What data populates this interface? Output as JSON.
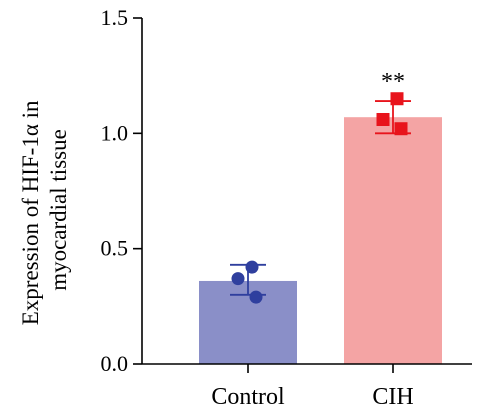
{
  "chart_data": {
    "type": "bar",
    "title": "",
    "xlabel": "",
    "ylabel_line1": "Expression of HIF-1α in",
    "ylabel_line2": "myocardial tissue",
    "ylim": [
      0,
      1.5
    ],
    "yticks": [
      0.0,
      0.5,
      1.0,
      1.5
    ],
    "ytick_labels": [
      "0.0",
      "0.5",
      "1.0",
      "1.5"
    ],
    "categories": [
      "Control",
      "CIH"
    ],
    "values": [
      0.36,
      1.07
    ],
    "error_low": [
      0.3,
      1.0
    ],
    "error_high": [
      0.43,
      1.14
    ],
    "points": [
      [
        0.42,
        0.37,
        0.29
      ],
      [
        1.15,
        1.06,
        1.02
      ]
    ],
    "significance": [
      "",
      "**"
    ],
    "bar_colors": [
      "#8a8fc8",
      "#f4a4a4"
    ],
    "point_colors": [
      "#2f3f9e",
      "#e8141c"
    ],
    "point_shapes": [
      "circle",
      "square"
    ],
    "grid": false,
    "legend": "none"
  }
}
